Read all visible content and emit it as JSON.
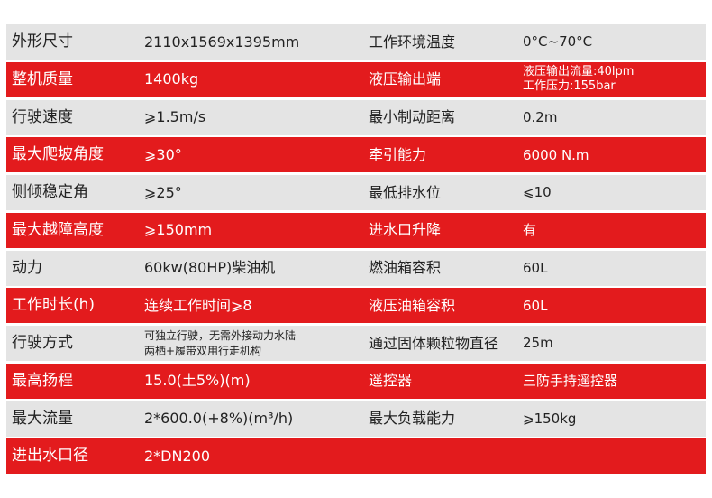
{
  "colors": {
    "red_row": "#e31b1d",
    "gray_row": "#e4e4e4"
  },
  "rows": [
    {
      "style": "gray",
      "label1": "外形尺寸",
      "value1": "2110x1569x1395mm",
      "label2": "工作环境温度",
      "value2": "0°C~70°C"
    },
    {
      "style": "red",
      "label1": "整机质量",
      "value1": "1400kg",
      "label2": "液压输出端",
      "value2_lines": [
        "液压输出流量:40lpm",
        "工作压力:155bar"
      ]
    },
    {
      "style": "gray",
      "label1": "行驶速度",
      "value1": "⩾1.5m/s",
      "label2": "最小制动距离",
      "value2": "0.2m"
    },
    {
      "style": "red",
      "label1": "最大爬坡角度",
      "value1": "⩾30°",
      "label2": "牵引能力",
      "value2": "6000 N.m"
    },
    {
      "style": "gray",
      "label1": "侧倾稳定角",
      "value1": "⩾25°",
      "label2": "最低排水位",
      "value2": "⩽10"
    },
    {
      "style": "red",
      "label1": "最大越障高度",
      "value1": "⩾150mm",
      "label2": "进水口升降",
      "value2": "有"
    },
    {
      "style": "gray",
      "label1": "动力",
      "value1": "60kw(80HP)柴油机",
      "label2": "燃油箱容积",
      "value2": "60L"
    },
    {
      "style": "red",
      "label1": "工作时长(h)",
      "value1": "连续工作时间⩾8",
      "label2": "液压油箱容积",
      "value2": "60L"
    },
    {
      "style": "gray",
      "label1": "行驶方式",
      "value1_lines": [
        "可独立行驶，无需外接动力水陆",
        "两栖+履带双用行走机构"
      ],
      "label2": "通过固体颗粒物直径",
      "value2": "25m"
    },
    {
      "style": "red",
      "label1": "最高扬程",
      "value1": "15.0(土5%)(m)",
      "label2": "遥控器",
      "value2": "三防手持遥控器"
    },
    {
      "style": "gray",
      "label1": "最大流量",
      "value1": " 2*600.0(+8%)(m³/h)",
      "label2": "最大负载能力",
      "value2": "⩾150kg"
    },
    {
      "style": "red",
      "label1": "进出水口径",
      "value1": "2*DN200",
      "label2": "",
      "value2": ""
    }
  ]
}
